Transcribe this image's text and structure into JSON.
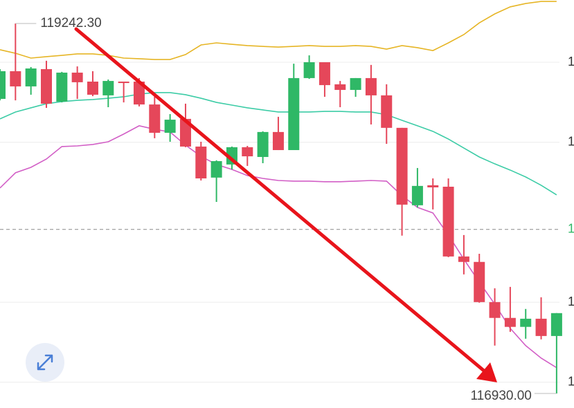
{
  "chart_data": {
    "type": "candlestick",
    "up_color": "#2fb866",
    "down_color": "#e5475a",
    "ylim": [
      116839,
      119389
    ],
    "yticks": [
      {
        "value": 119000,
        "label": "1"
      },
      {
        "value": 118500,
        "label": "1"
      },
      {
        "value": 117500,
        "label": "1"
      },
      {
        "value": 117000,
        "label": "1"
      }
    ],
    "grid": true,
    "open": [
      118771,
      118944,
      118849,
      118957,
      118754,
      118935,
      118879,
      118793,
      118879,
      118879,
      118736,
      118559,
      118646,
      118473,
      118279,
      118361,
      118469,
      118408,
      118564,
      118451,
      118901,
      119000,
      118862,
      118827,
      118901,
      118793,
      118590,
      118106,
      118231,
      118222,
      117786,
      117752,
      117501,
      117402,
      117346,
      117397,
      117289
    ],
    "high": [
      118957,
      119242.3,
      118970,
      119009,
      118940,
      118974,
      118944,
      118892,
      118879,
      118901,
      118784,
      118676,
      118741,
      118503,
      118387,
      118473,
      118477,
      118568,
      118659,
      118991,
      119043,
      119000,
      118883,
      118901,
      118983,
      118862,
      118590,
      118339,
      118274,
      118274,
      117920,
      117803,
      117587,
      117596,
      117458,
      117531,
      117432
    ],
    "low": [
      118762,
      118762,
      118797,
      118715,
      118749,
      118771,
      118788,
      118719,
      118749,
      118724,
      118525,
      118503,
      118469,
      118261,
      118127,
      118330,
      118352,
      118369,
      118451,
      118451,
      118896,
      118784,
      118719,
      118784,
      118611,
      118490,
      117916,
      118093,
      118080,
      117782,
      117674,
      117497,
      117229,
      117315,
      117272,
      117268,
      116930
    ],
    "close": [
      118944,
      118849,
      118961,
      118741,
      118935,
      118875,
      118797,
      118883,
      118870,
      118736,
      118559,
      118641,
      118473,
      118274,
      118382,
      118469,
      118412,
      118564,
      118451,
      118901,
      119000,
      118857,
      118827,
      118901,
      118793,
      118590,
      118110,
      118227,
      118218,
      117786,
      117752,
      117501,
      117402,
      117346,
      117397,
      117289,
      117432
    ],
    "bands": [
      {
        "color": "#e6b525",
        "values": [
          119078,
          119056,
          119026,
          119035,
          119043,
          119052,
          119052,
          119043,
          119026,
          119022,
          119017,
          119017,
          119048,
          119108,
          119121,
          119112,
          119104,
          119099,
          119095,
          119099,
          119104,
          119099,
          119099,
          119104,
          119099,
          119082,
          119104,
          119091,
          119073,
          119121,
          119173,
          119246,
          119302,
          119346,
          119367,
          119380,
          119380
        ]
      },
      {
        "color": "#3ccca6",
        "values": [
          118646,
          118689,
          118715,
          118741,
          118754,
          118762,
          118767,
          118775,
          118784,
          118801,
          118810,
          118810,
          118797,
          118775,
          118749,
          118732,
          118715,
          118702,
          118689,
          118689,
          118689,
          118693,
          118693,
          118689,
          118689,
          118672,
          118637,
          118603,
          118568,
          118520,
          118464,
          118408,
          118365,
          118326,
          118283,
          118231,
          118171
        ]
      },
      {
        "color": "#d25fc6",
        "values": [
          118214,
          118309,
          118343,
          118395,
          118473,
          118477,
          118486,
          118503,
          118551,
          118603,
          118581,
          118564,
          118482,
          118412,
          118361,
          118330,
          118292,
          118274,
          118261,
          118257,
          118257,
          118253,
          118253,
          118257,
          118261,
          118257,
          118166,
          118093,
          118058,
          117920,
          117769,
          117626,
          117488,
          117337,
          117229,
          117151,
          117091
        ]
      }
    ],
    "last_price": {
      "value": 117955,
      "label": "1"
    },
    "annotations": [
      {
        "value": 119242.3,
        "label": "119242.30"
      },
      {
        "value": 116930,
        "label": "116930.00"
      }
    ]
  }
}
